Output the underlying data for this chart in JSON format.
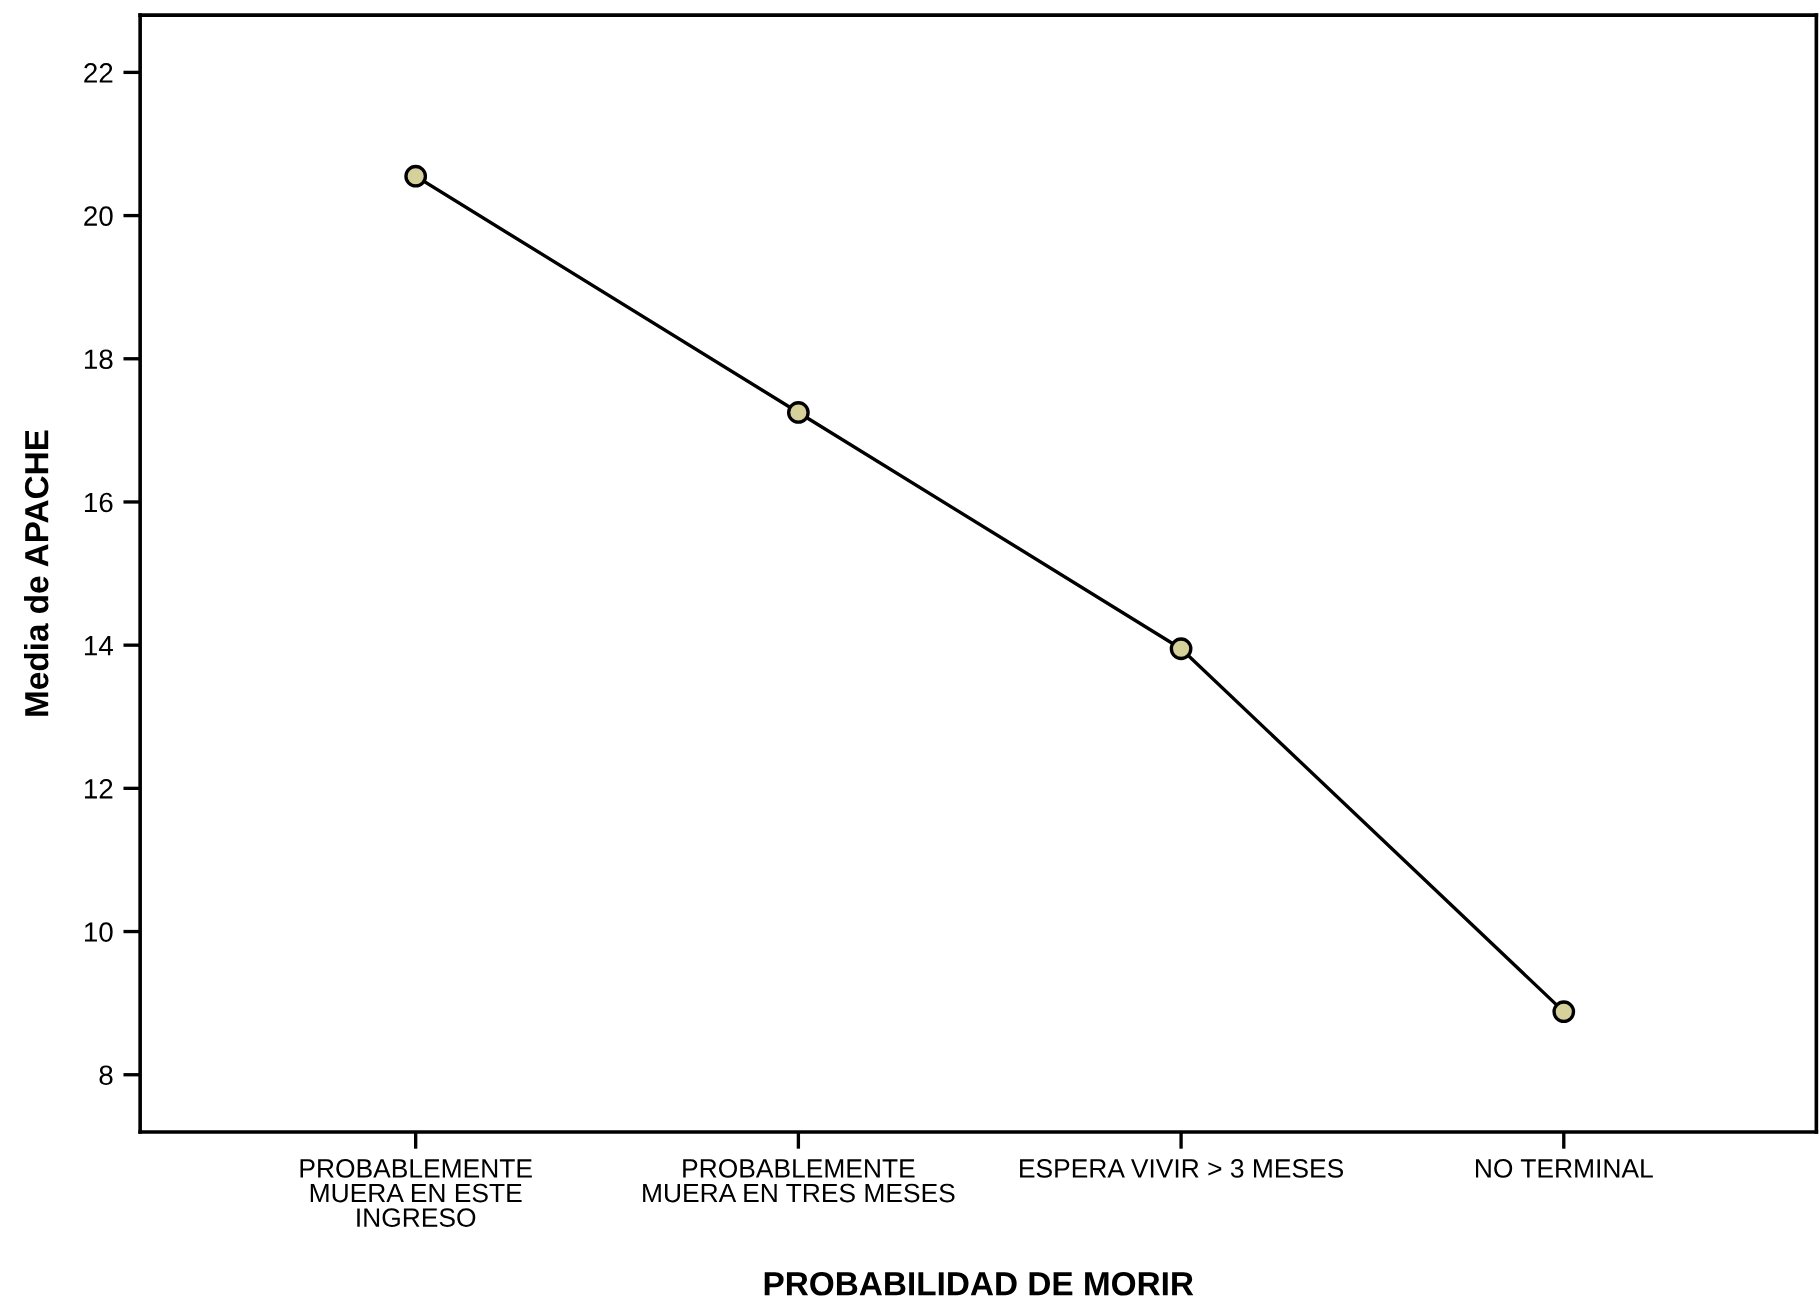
{
  "chart_data": {
    "type": "line",
    "xlabel": "PROBABILIDAD DE MORIR",
    "ylabel": "Media de APACHE",
    "categories": [
      "PROBABLEMENTE\nMUERA EN ESTE\nINGRESO",
      "PROBABLEMENTE\nMUERA EN TRES MESES",
      "ESPERA VIVIR > 3 MESES",
      "NO TERMINAL"
    ],
    "series": [
      {
        "color": "#000000",
        "values": [
          20.55,
          17.25,
          13.95,
          8.88
        ]
      }
    ],
    "marker": "circle",
    "line_style": "solid",
    "ylim": [
      7.2,
      22.8
    ],
    "yticks": [
      8,
      10,
      12,
      14,
      16,
      18,
      20,
      22
    ],
    "grid": false,
    "legend": false
  }
}
